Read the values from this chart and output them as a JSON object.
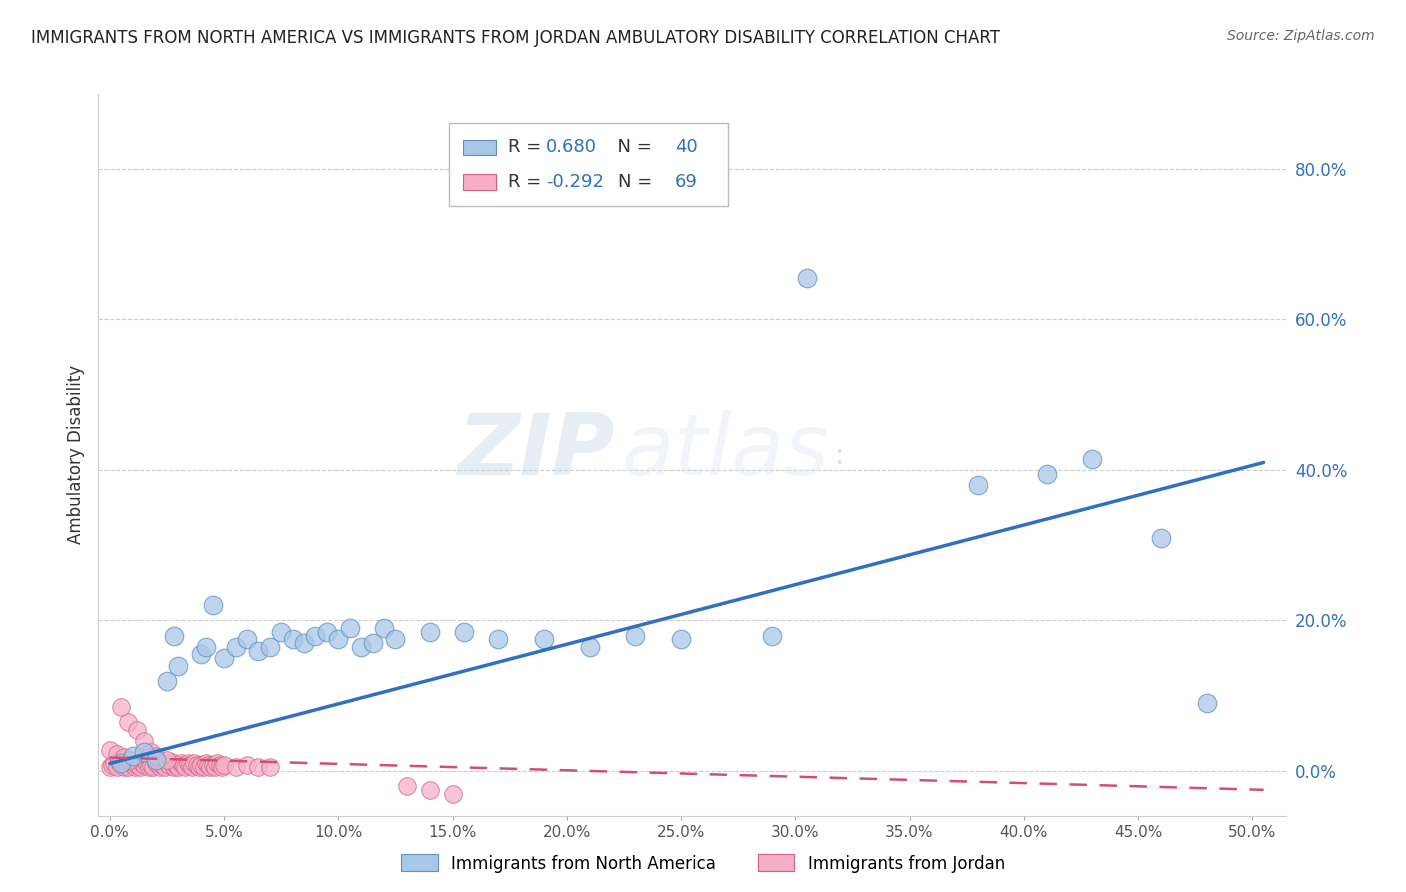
{
  "title": "IMMIGRANTS FROM NORTH AMERICA VS IMMIGRANTS FROM JORDAN AMBULATORY DISABILITY CORRELATION CHART",
  "source": "Source: ZipAtlas.com",
  "ylabel": "Ambulatory Disability",
  "legend_blue_label": "Immigrants from North America",
  "legend_pink_label": "Immigrants from Jordan",
  "R_blue": 0.68,
  "N_blue": 40,
  "R_pink": -0.292,
  "N_pink": 69,
  "xlim": [
    -0.005,
    0.515
  ],
  "ylim": [
    -0.06,
    0.9
  ],
  "xticks": [
    0.0,
    0.05,
    0.1,
    0.15,
    0.2,
    0.25,
    0.3,
    0.35,
    0.4,
    0.45,
    0.5
  ],
  "yticks": [
    0.0,
    0.2,
    0.4,
    0.6,
    0.8
  ],
  "blue_scatter": [
    [
      0.005,
      0.01
    ],
    [
      0.01,
      0.02
    ],
    [
      0.015,
      0.025
    ],
    [
      0.02,
      0.015
    ],
    [
      0.025,
      0.12
    ],
    [
      0.028,
      0.18
    ],
    [
      0.03,
      0.14
    ],
    [
      0.04,
      0.155
    ],
    [
      0.042,
      0.165
    ],
    [
      0.045,
      0.22
    ],
    [
      0.05,
      0.15
    ],
    [
      0.055,
      0.165
    ],
    [
      0.06,
      0.175
    ],
    [
      0.065,
      0.16
    ],
    [
      0.07,
      0.165
    ],
    [
      0.075,
      0.185
    ],
    [
      0.08,
      0.175
    ],
    [
      0.085,
      0.17
    ],
    [
      0.09,
      0.18
    ],
    [
      0.095,
      0.185
    ],
    [
      0.1,
      0.175
    ],
    [
      0.105,
      0.19
    ],
    [
      0.11,
      0.165
    ],
    [
      0.115,
      0.17
    ],
    [
      0.12,
      0.19
    ],
    [
      0.125,
      0.175
    ],
    [
      0.14,
      0.185
    ],
    [
      0.155,
      0.185
    ],
    [
      0.17,
      0.175
    ],
    [
      0.19,
      0.175
    ],
    [
      0.21,
      0.165
    ],
    [
      0.23,
      0.18
    ],
    [
      0.25,
      0.175
    ],
    [
      0.29,
      0.18
    ],
    [
      0.305,
      0.655
    ],
    [
      0.38,
      0.38
    ],
    [
      0.41,
      0.395
    ],
    [
      0.43,
      0.415
    ],
    [
      0.46,
      0.31
    ],
    [
      0.48,
      0.09
    ]
  ],
  "pink_scatter": [
    [
      0.0,
      0.005
    ],
    [
      0.001,
      0.008
    ],
    [
      0.002,
      0.01
    ],
    [
      0.003,
      0.005
    ],
    [
      0.004,
      0.012
    ],
    [
      0.005,
      0.015
    ],
    [
      0.006,
      0.006
    ],
    [
      0.007,
      0.008
    ],
    [
      0.008,
      0.005
    ],
    [
      0.009,
      0.01
    ],
    [
      0.01,
      0.012
    ],
    [
      0.011,
      0.006
    ],
    [
      0.012,
      0.008
    ],
    [
      0.013,
      0.005
    ],
    [
      0.014,
      0.01
    ],
    [
      0.015,
      0.008
    ],
    [
      0.016,
      0.012
    ],
    [
      0.017,
      0.006
    ],
    [
      0.018,
      0.008
    ],
    [
      0.019,
      0.005
    ],
    [
      0.02,
      0.01
    ],
    [
      0.021,
      0.012
    ],
    [
      0.022,
      0.006
    ],
    [
      0.023,
      0.008
    ],
    [
      0.024,
      0.005
    ],
    [
      0.025,
      0.01
    ],
    [
      0.026,
      0.008
    ],
    [
      0.027,
      0.012
    ],
    [
      0.028,
      0.006
    ],
    [
      0.029,
      0.008
    ],
    [
      0.03,
      0.005
    ],
    [
      0.031,
      0.01
    ],
    [
      0.032,
      0.008
    ],
    [
      0.033,
      0.006
    ],
    [
      0.034,
      0.01
    ],
    [
      0.035,
      0.008
    ],
    [
      0.036,
      0.005
    ],
    [
      0.037,
      0.01
    ],
    [
      0.038,
      0.008
    ],
    [
      0.039,
      0.006
    ],
    [
      0.04,
      0.008
    ],
    [
      0.041,
      0.005
    ],
    [
      0.042,
      0.01
    ],
    [
      0.043,
      0.008
    ],
    [
      0.044,
      0.006
    ],
    [
      0.045,
      0.008
    ],
    [
      0.046,
      0.005
    ],
    [
      0.047,
      0.01
    ],
    [
      0.048,
      0.008
    ],
    [
      0.049,
      0.006
    ],
    [
      0.05,
      0.008
    ],
    [
      0.055,
      0.005
    ],
    [
      0.06,
      0.008
    ],
    [
      0.065,
      0.006
    ],
    [
      0.07,
      0.005
    ],
    [
      0.008,
      0.065
    ],
    [
      0.005,
      0.085
    ],
    [
      0.012,
      0.055
    ],
    [
      0.015,
      0.04
    ],
    [
      0.018,
      0.025
    ],
    [
      0.02,
      0.02
    ],
    [
      0.025,
      0.015
    ],
    [
      0.0,
      0.028
    ],
    [
      0.003,
      0.022
    ],
    [
      0.006,
      0.018
    ],
    [
      0.009,
      0.015
    ],
    [
      0.14,
      -0.025
    ],
    [
      0.15,
      -0.03
    ],
    [
      0.13,
      -0.02
    ]
  ],
  "blue_line_x": [
    0.0,
    0.505
  ],
  "blue_line_y": [
    0.01,
    0.41
  ],
  "pink_line_x": [
    0.0,
    0.505
  ],
  "pink_line_y": [
    0.018,
    -0.025
  ],
  "blue_scatter_color": "#a8c8e8",
  "pink_scatter_color": "#f5b0c8",
  "blue_edge_color": "#6090c0",
  "pink_edge_color": "#d06080",
  "blue_line_color": "#3070c0",
  "pink_line_color": "#d05070",
  "watermark_color": "#d0dce8",
  "background_color": "#ffffff",
  "grid_color": "#cccccc"
}
